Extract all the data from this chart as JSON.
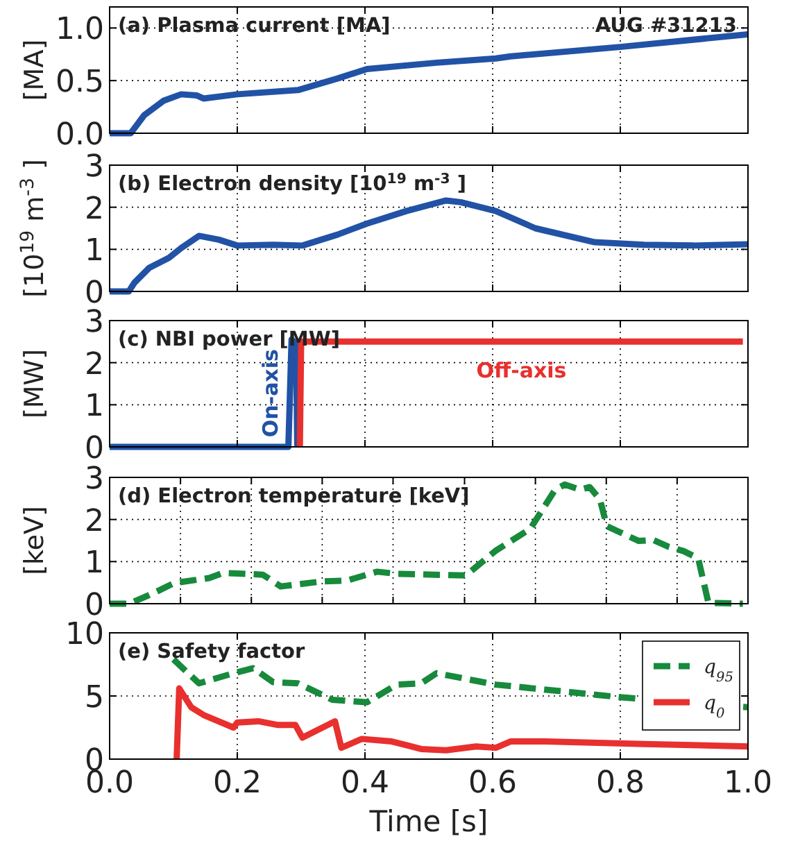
{
  "chart_data": [
    {
      "type": "line",
      "title": "(a) Plasma current [MA]",
      "ylabel": "[MA]",
      "annotations": [
        "AUG #31213"
      ],
      "xlim": [
        0,
        1
      ],
      "xticks": [
        0,
        0.2,
        0.4,
        0.6,
        0.8,
        1
      ],
      "ylim": [
        0,
        1.2
      ],
      "yticks": [
        {
          "value": 0,
          "label": "0.0"
        },
        {
          "value": 0.5,
          "label": "0.5"
        },
        {
          "value": 1,
          "label": "1.0"
        }
      ],
      "grid": true,
      "tick_labels": "y",
      "series": [
        {
          "color": "#2152a5",
          "line_style": "solid",
          "x": [
            0,
            0.033,
            0.054,
            0.085,
            0.112,
            0.136,
            0.147,
            0.2,
            0.295,
            0.357,
            0.403,
            0.512,
            0.605,
            0.628,
            0.8,
            1
          ],
          "values": [
            0,
            0,
            0.17,
            0.31,
            0.37,
            0.36,
            0.33,
            0.37,
            0.41,
            0.52,
            0.61,
            0.67,
            0.71,
            0.73,
            0.82,
            0.94
          ]
        }
      ]
    },
    {
      "type": "line",
      "title": "(b) Electron density [10$^{19}$ m$^{-3}$]",
      "ylabel": "[10$^{19}$ m$^{-3}$]",
      "xlim": [
        0,
        1
      ],
      "xticks": [
        0,
        0.2,
        0.4,
        0.6,
        0.8,
        1
      ],
      "ylim": [
        0,
        3
      ],
      "yticks": [
        0,
        1,
        2,
        3
      ],
      "grid": true,
      "tick_labels": "y",
      "series": [
        {
          "color": "#2152a5",
          "line_style": "solid",
          "x": [
            0,
            0.03,
            0.039,
            0.062,
            0.093,
            0.112,
            0.14,
            0.171,
            0.2,
            0.256,
            0.302,
            0.357,
            0.403,
            0.465,
            0.527,
            0.55,
            0.605,
            0.667,
            0.76,
            0.837,
            0.915,
            1
          ],
          "values": [
            0,
            0,
            0.21,
            0.56,
            0.8,
            1.03,
            1.32,
            1.23,
            1.09,
            1.11,
            1.09,
            1.35,
            1.61,
            1.91,
            2.16,
            2.12,
            1.91,
            1.5,
            1.17,
            1.11,
            1.09,
            1.12
          ]
        }
      ]
    },
    {
      "type": "line",
      "title": "(c) NBI power [MW]",
      "ylabel": "[MW]",
      "xlim": [
        0,
        1
      ],
      "xticks": [
        0,
        0.2,
        0.4,
        0.6,
        0.8,
        1
      ],
      "ylim": [
        0,
        3
      ],
      "yticks": [
        0,
        1,
        2,
        3
      ],
      "grid": true,
      "tick_labels": "y",
      "series": [
        {
          "name": "On-axis",
          "color": "#2152a5",
          "line_style": "solid",
          "x": [
            0,
            0.28,
            0.285,
            0.292,
            0.294
          ],
          "values": [
            0,
            0,
            2.55,
            2.45,
            0
          ]
        },
        {
          "name": "Off-axis",
          "color": "#e8302e",
          "line_style": "solid",
          "x": [
            0.298,
            0.3,
            0.992
          ],
          "values": [
            0,
            2.5,
            2.5
          ]
        }
      ]
    },
    {
      "type": "line",
      "title": "(d) Electron temperature [keV]",
      "ylabel": "[keV]",
      "xlim": [
        0,
        1
      ],
      "xticks": [
        {
          "value": 0,
          "label": null
        },
        {
          "value": 0.111,
          "label": null
        },
        {
          "value": 0.222,
          "label": null
        },
        {
          "value": 0.333,
          "label": null
        },
        {
          "value": 0.444,
          "label": null
        },
        {
          "value": 0.556,
          "label": null
        },
        {
          "value": 0.667,
          "label": null
        },
        {
          "value": 0.778,
          "label": null
        },
        {
          "value": 0.889,
          "label": null
        },
        {
          "value": 1,
          "label": null
        }
      ],
      "ylim": [
        0,
        3
      ],
      "yticks": [
        0,
        1,
        2,
        3
      ],
      "grid": true,
      "tick_labels": "y",
      "series": [
        {
          "color": "#178a3c",
          "line_style": "dashed",
          "x": [
            0,
            0.031,
            0.07,
            0.101,
            0.156,
            0.178,
            0.24,
            0.268,
            0.333,
            0.372,
            0.419,
            0.45,
            0.558,
            0.604,
            0.659,
            0.698,
            0.713,
            0.737,
            0.752,
            0.768,
            0.779,
            0.829,
            0.852,
            0.876,
            0.899,
            0.922,
            0.938,
            0.992
          ],
          "values": [
            0,
            0,
            0.26,
            0.49,
            0.61,
            0.73,
            0.69,
            0.41,
            0.53,
            0.55,
            0.76,
            0.71,
            0.67,
            1.25,
            1.78,
            2.71,
            2.83,
            2.71,
            2.77,
            2.48,
            1.84,
            1.49,
            1.51,
            1.35,
            1.25,
            1.08,
            0.02,
            0
          ]
        }
      ]
    },
    {
      "type": "line",
      "title": "(e) Safety factor",
      "xlabel": "Time [s]",
      "xlim": [
        0,
        1
      ],
      "xticks": [
        {
          "value": 0,
          "label": "0.0"
        },
        {
          "value": 0.2,
          "label": "0.2"
        },
        {
          "value": 0.4,
          "label": "0.4"
        },
        {
          "value": 0.6,
          "label": "0.6"
        },
        {
          "value": 0.8,
          "label": "0.8"
        },
        {
          "value": 1,
          "label": "1.0"
        }
      ],
      "ylim": [
        0,
        10
      ],
      "yticks": [
        0,
        5,
        10
      ],
      "grid": true,
      "legend": "top right",
      "series": [
        {
          "name": "q$_{95}$",
          "color": "#178a3c",
          "line_style": "dashed",
          "x": [
            0.1,
            0.14,
            0.194,
            0.225,
            0.256,
            0.295,
            0.349,
            0.403,
            0.45,
            0.488,
            0.512,
            0.605,
            0.8,
            1
          ],
          "values": [
            7.9,
            6.0,
            6.8,
            7.2,
            6.1,
            6.0,
            4.7,
            4.5,
            5.9,
            6.0,
            6.8,
            5.9,
            4.9,
            4.1
          ]
        },
        {
          "name": "q$_{0}$",
          "color": "#e8302e",
          "line_style": "solid",
          "x": [
            0.105,
            0.109,
            0.128,
            0.147,
            0.194,
            0.2,
            0.233,
            0.264,
            0.291,
            0.302,
            0.353,
            0.363,
            0.395,
            0.442,
            0.465,
            0.488,
            0.527,
            0.574,
            0.605,
            0.628,
            0.682,
            0.837,
            1
          ],
          "values": [
            0,
            5.6,
            4.1,
            3.5,
            2.5,
            2.9,
            3.0,
            2.7,
            2.7,
            1.7,
            3.0,
            0.9,
            1.6,
            1.4,
            1.1,
            0.8,
            0.7,
            1.0,
            0.9,
            1.4,
            1.4,
            1.2,
            1.0
          ]
        }
      ]
    }
  ]
}
